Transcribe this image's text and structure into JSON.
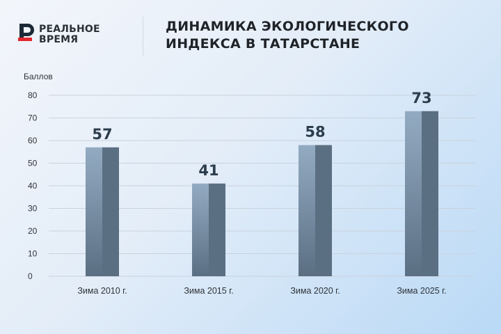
{
  "brand": {
    "line1": "РЕАЛЬНОЕ",
    "line2": "ВРЕМЯ",
    "colors": {
      "mark_top": "#1c2a37",
      "mark_bottom": "#e3262c"
    }
  },
  "title": {
    "line1": "ДИНАМИКА ЭКОЛОГИЧЕСКОГО",
    "line2": "ИНДЕКСА В ТАТАРСТАНЕ"
  },
  "chart_data": {
    "type": "bar",
    "title": "ДИНАМИКА ЭКОЛОГИЧЕСКОГО ИНДЕКСА В ТАТАРСТАНЕ",
    "xlabel": "",
    "ylabel": "Баллов",
    "categories": [
      "Зима 2010 г.",
      "Зима 2015 г.",
      "Зима 2020 г.",
      "Зима 2025 г."
    ],
    "values": [
      57,
      41,
      58,
      73
    ],
    "ylim": [
      0,
      80
    ],
    "yticks": [
      0,
      10,
      20,
      30,
      40,
      50,
      60,
      70,
      80
    ],
    "grid": true,
    "legend": "none",
    "colors": {
      "bar_light": "#8aa3bb",
      "bar_dark": "#5b6f83",
      "grid": "#c9d2dc",
      "value_label": "#2c3d4c"
    }
  }
}
